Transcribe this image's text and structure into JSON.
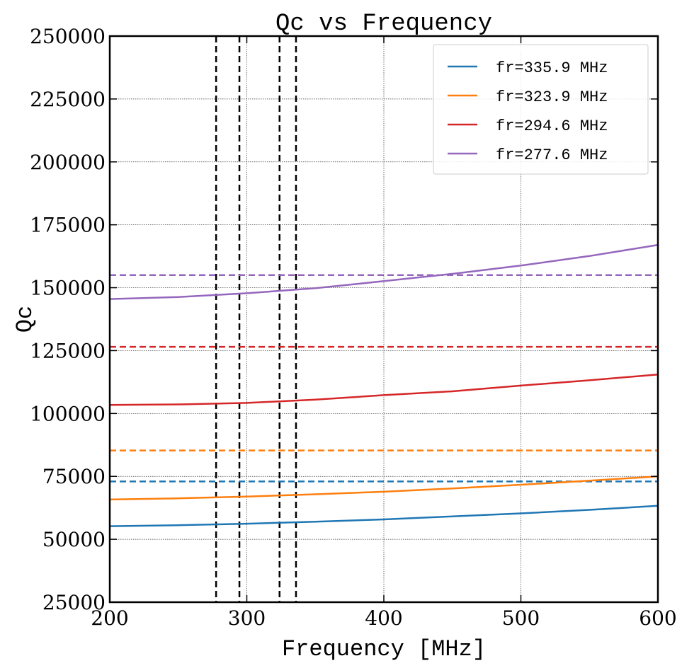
{
  "chart_data": {
    "type": "line",
    "title": "Qc vs Frequency",
    "xlabel": "Frequency [MHz]",
    "ylabel": "Qc",
    "xlim": [
      200,
      600
    ],
    "ylim": [
      25000,
      250000
    ],
    "xticks": [
      200,
      300,
      400,
      500,
      600
    ],
    "yticks": [
      25000,
      50000,
      75000,
      100000,
      125000,
      150000,
      175000,
      200000,
      225000,
      250000
    ],
    "grid": true,
    "legend_position": "top-right",
    "x": [
      200,
      250,
      300,
      350,
      400,
      450,
      500,
      550,
      600
    ],
    "series": [
      {
        "name": "fr=335.9 MHz",
        "color": "#1f77b4",
        "values": [
          55200,
          55600,
          56200,
          57000,
          57900,
          59100,
          60300,
          61700,
          63300
        ],
        "reference_qc": 73000,
        "resonance_mhz": 335.9
      },
      {
        "name": "fr=323.9 MHz",
        "color": "#ff7f0e",
        "values": [
          65800,
          66300,
          67000,
          67900,
          68900,
          70200,
          71700,
          73300,
          75000
        ],
        "reference_qc": 85300,
        "resonance_mhz": 323.9
      },
      {
        "name": "fr=294.6 MHz",
        "color": "#d62728",
        "values": [
          103400,
          103600,
          104200,
          105500,
          107300,
          108800,
          111100,
          113200,
          115500
        ],
        "reference_qc": 126500,
        "resonance_mhz": 294.6
      },
      {
        "name": "fr=277.6 MHz",
        "color": "#9467bd",
        "values": [
          145500,
          146300,
          147800,
          149800,
          152600,
          155500,
          158800,
          162600,
          167000
        ],
        "reference_qc": 155000,
        "resonance_mhz": 277.6
      }
    ]
  }
}
